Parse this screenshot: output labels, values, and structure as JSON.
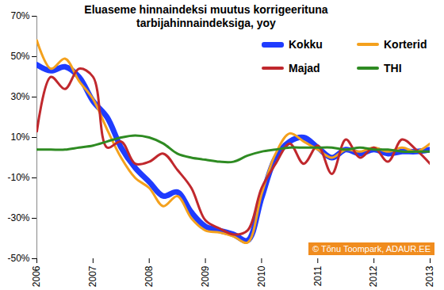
{
  "chart_data": {
    "type": "line",
    "title": "Eluaseme hinnaindeksi muutus korrigeerituna tarbijahinnaindeksiga, yoy",
    "x": [
      2006,
      2006.25,
      2006.5,
      2006.75,
      2007,
      2007.25,
      2007.5,
      2007.75,
      2008,
      2008.25,
      2008.5,
      2008.75,
      2009,
      2009.25,
      2009.5,
      2009.75,
      2010,
      2010.25,
      2010.5,
      2010.75,
      2011,
      2011.25,
      2011.5,
      2011.75,
      2012,
      2012.25,
      2012.5,
      2012.75,
      2013
    ],
    "series": [
      {
        "name": "Kokku",
        "color": "#1f3cff",
        "values": [
          46,
          43,
          45,
          40,
          28,
          20,
          5,
          -5,
          -12,
          -19,
          -17,
          -27,
          -34,
          -36,
          -38,
          -41,
          -20,
          0,
          8,
          10,
          5,
          0,
          4,
          2,
          4,
          2,
          3,
          3,
          4
        ]
      },
      {
        "name": "Korterid",
        "color": "#f4a11d",
        "values": [
          58,
          44,
          49,
          38,
          29,
          14,
          0,
          -10,
          -15,
          -24,
          -19,
          -30,
          -36,
          -37,
          -39,
          -42,
          -18,
          2,
          12,
          8,
          4,
          0,
          4,
          3,
          5,
          3,
          5,
          3,
          7
        ]
      },
      {
        "name": "Majad",
        "color": "#c0282d",
        "values": [
          13,
          40,
          34,
          44,
          40,
          5,
          8,
          -3,
          -2,
          2,
          -6,
          -15,
          -31,
          -35,
          -38,
          -36,
          -15,
          -3,
          7,
          -3,
          6,
          -8,
          9,
          0,
          5,
          -2,
          9,
          4,
          -3
        ]
      },
      {
        "name": "THI",
        "color": "#2e8b22",
        "values": [
          4,
          4,
          4,
          5,
          6,
          8,
          10,
          11,
          10,
          7,
          2,
          0,
          -1,
          -2,
          -2,
          1,
          3,
          4,
          5,
          5,
          5,
          5,
          4,
          5,
          4,
          4,
          3,
          3,
          3
        ]
      }
    ],
    "xlim": [
      2006,
      2013
    ],
    "xticks": [
      2006,
      2007,
      2008,
      2009,
      2010,
      2011,
      2012,
      2013
    ],
    "ylim": [
      -50,
      70
    ],
    "yticks": [
      {
        "value": -50,
        "label": "-50%"
      },
      {
        "value": -30,
        "label": "-30%"
      },
      {
        "value": -10,
        "label": "-10%"
      },
      {
        "value": 10,
        "label": "10%"
      },
      {
        "value": 30,
        "label": "30%"
      },
      {
        "value": 50,
        "label": "50%"
      },
      {
        "value": 70,
        "label": "70%"
      }
    ],
    "grid": false,
    "legend": "top-right",
    "annotations": [
      "© Tõnu Toompark, ADAUR.EE"
    ]
  }
}
